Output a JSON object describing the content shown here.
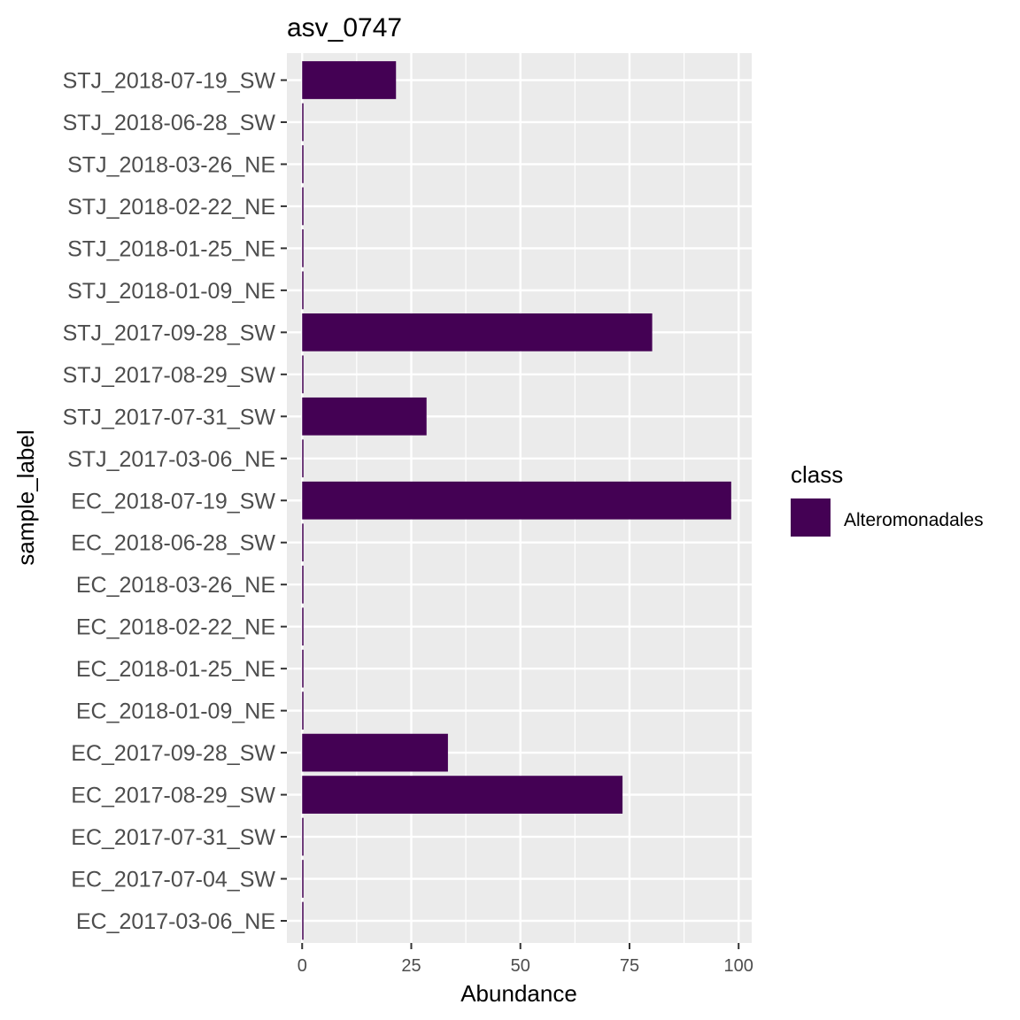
{
  "chart_data": {
    "type": "bar",
    "orientation": "horizontal",
    "title": "asv_0747",
    "xlabel": "Abundance",
    "ylabel": "sample_label",
    "xlim": [
      -3.5,
      103
    ],
    "x_ticks": [
      0,
      25,
      50,
      75,
      100
    ],
    "grid": true,
    "legend": {
      "title": "class",
      "placement": "right",
      "items": [
        {
          "label": "Alteromonadales",
          "color": "#440154"
        }
      ]
    },
    "categories": [
      "STJ_2018-07-19_SW",
      "STJ_2018-06-28_SW",
      "STJ_2018-03-26_NE",
      "STJ_2018-02-22_NE",
      "STJ_2018-01-25_NE",
      "STJ_2018-01-09_NE",
      "STJ_2017-09-28_SW",
      "STJ_2017-08-29_SW",
      "STJ_2017-07-31_SW",
      "STJ_2017-03-06_NE",
      "EC_2018-07-19_SW",
      "EC_2018-06-28_SW",
      "EC_2018-03-26_NE",
      "EC_2018-02-22_NE",
      "EC_2018-01-25_NE",
      "EC_2018-01-09_NE",
      "EC_2017-09-28_SW",
      "EC_2017-08-29_SW",
      "EC_2017-07-31_SW",
      "EC_2017-07-04_SW",
      "EC_2017-03-06_NE"
    ],
    "series": [
      {
        "color": "#440154",
        "values": [
          21.5,
          0.3,
          0.3,
          0.3,
          0.3,
          0.3,
          80.2,
          0.3,
          28.5,
          0.3,
          98.3,
          0.3,
          0.3,
          0.3,
          0.3,
          0.3,
          33.4,
          73.4,
          0.3,
          0.3,
          0.3
        ]
      }
    ]
  }
}
